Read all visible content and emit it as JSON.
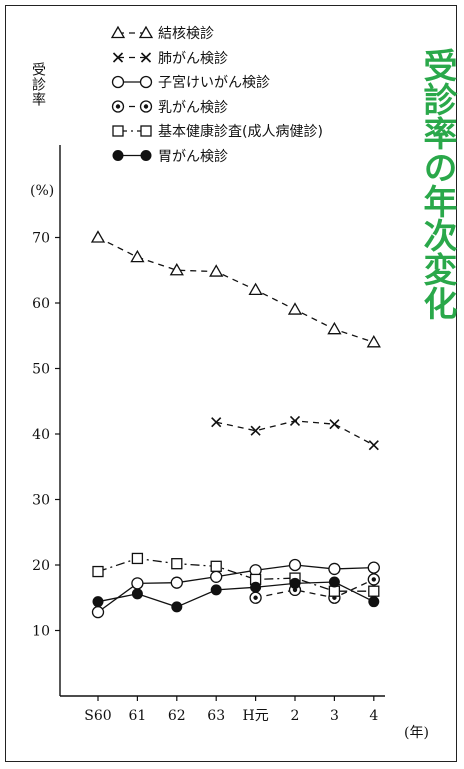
{
  "figure": {
    "title": "受診率の年次変化",
    "ylabel": "受診率",
    "unit": "(%)",
    "xunit": "(年)"
  },
  "legend": [
    {
      "label": "結核検診",
      "marker": "triangle-open",
      "dash": "6,5"
    },
    {
      "label": "肺がん検診",
      "marker": "cross",
      "dash": "6,5"
    },
    {
      "label": "子宮けいがん検診",
      "marker": "circle-open",
      "dash": ""
    },
    {
      "label": "乳がん検診",
      "marker": "bullseye",
      "dash": "6,5"
    },
    {
      "label": "基本健康診査(成人病健診)",
      "marker": "square-open",
      "dash": "9,4,2,4"
    },
    {
      "label": "胃がん検診",
      "marker": "circle-filled",
      "dash": ""
    }
  ],
  "chart_data": {
    "type": "line",
    "categories": [
      "S60",
      "61",
      "62",
      "63",
      "H元",
      "2",
      "3",
      "4"
    ],
    "ylim": [
      0,
      80
    ],
    "yticks": [
      10,
      20,
      30,
      40,
      50,
      60,
      70
    ],
    "series": [
      {
        "name": "結核検診",
        "marker": "triangle-open",
        "dash": "6,5",
        "values": [
          70,
          67,
          65,
          64.8,
          62,
          59,
          56,
          54
        ]
      },
      {
        "name": "肺がん検診",
        "marker": "cross",
        "dash": "6,5",
        "values": [
          null,
          null,
          null,
          41.8,
          40.5,
          42,
          41.5,
          38.3
        ]
      },
      {
        "name": "子宮けいがん検診",
        "marker": "circle-open",
        "dash": "",
        "values": [
          12.8,
          17.2,
          17.3,
          18.2,
          19.2,
          20,
          19.4,
          19.6
        ]
      },
      {
        "name": "乳がん検診",
        "marker": "bullseye",
        "dash": "6,5",
        "values": [
          null,
          null,
          null,
          null,
          15,
          16.2,
          15,
          17.8
        ]
      },
      {
        "name": "基本健康診査(成人病健診)",
        "marker": "square-open",
        "dash": "9,4,2,4",
        "values": [
          19,
          21,
          20.2,
          19.8,
          17.8,
          18,
          16,
          16
        ]
      },
      {
        "name": "胃がん検診",
        "marker": "circle-filled",
        "dash": "",
        "values": [
          14.4,
          15.6,
          13.6,
          16.2,
          16.6,
          17.2,
          17.4,
          14.4
        ]
      }
    ]
  }
}
